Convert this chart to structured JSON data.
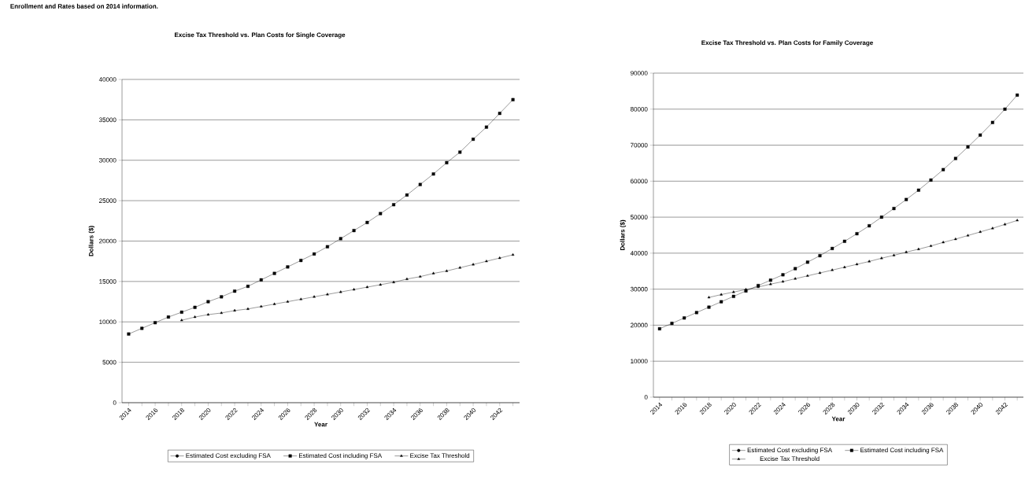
{
  "chart_data": [
    {
      "type": "line",
      "title": "Excise Tax Threshold vs. Plan Costs for Single Coverage",
      "xlabel": "Year",
      "ylabel": "Dollars ($)",
      "annotations": [
        "Enrollment and Rates based on 2014 information."
      ],
      "categories": [
        "2014",
        null,
        "2016",
        null,
        "2018",
        null,
        "2020",
        null,
        "2022",
        null,
        "2024",
        null,
        "2026",
        null,
        "2028",
        null,
        "2030",
        null,
        "2032",
        null,
        "2034",
        null,
        "2036",
        null,
        "2038",
        null,
        "2040",
        null,
        "2042",
        null
      ],
      "ylim": [
        0,
        40000
      ],
      "yticks": [
        0,
        5000,
        10000,
        15000,
        20000,
        25000,
        30000,
        35000,
        40000
      ],
      "grid": "y",
      "legend": "bottom",
      "series": [
        {
          "name": "Estimated Cost excluding FSA",
          "color": "#000000",
          "marker": "circle",
          "values": [
            null,
            null,
            null,
            null,
            null,
            null,
            null,
            null,
            null,
            null,
            null,
            null,
            null,
            null,
            null,
            null,
            null,
            null,
            null,
            null,
            null,
            null,
            null,
            null,
            null,
            null,
            null,
            null,
            null,
            null
          ]
        },
        {
          "name": "Estimated Cost including FSA",
          "color": "#000000",
          "marker": "square",
          "values": [
            8500,
            9200,
            9900,
            10600,
            11200,
            11800,
            12500,
            13100,
            13800,
            14400,
            15200,
            16000,
            16800,
            17600,
            18400,
            19300,
            20300,
            21300,
            22300,
            23400,
            24500,
            25700,
            27000,
            28300,
            29700,
            31000,
            32600,
            34100,
            35800,
            37500
          ]
        },
        {
          "name": "Excise Tax Threshold",
          "color": "#000000",
          "marker": "triangle",
          "values": [
            null,
            null,
            null,
            null,
            10200,
            10600,
            10900,
            11100,
            11400,
            11600,
            11900,
            12200,
            12500,
            12800,
            13100,
            13400,
            13700,
            14000,
            14300,
            14600,
            14900,
            15300,
            15600,
            16000,
            16300,
            16700,
            17100,
            17500,
            17900,
            18300
          ]
        }
      ]
    },
    {
      "type": "line",
      "title": "Excise Tax Threshold vs. Plan Costs for Family Coverage",
      "xlabel": "Year",
      "ylabel": "Dollars ($)",
      "categories": [
        "2014",
        null,
        "2016",
        null,
        "2018",
        null,
        "2020",
        null,
        "2022",
        null,
        "2024",
        null,
        "2026",
        null,
        "2028",
        null,
        "2030",
        null,
        "2032",
        null,
        "2034",
        null,
        "2036",
        null,
        "2038",
        null,
        "2040",
        null,
        "2042",
        null
      ],
      "ylim": [
        0,
        90000
      ],
      "yticks": [
        0,
        10000,
        20000,
        30000,
        40000,
        50000,
        60000,
        70000,
        80000,
        90000
      ],
      "grid": "y",
      "legend": "bottom",
      "series": [
        {
          "name": "Estimated Cost excluding FSA",
          "color": "#000000",
          "marker": "circle",
          "values": [
            null,
            null,
            null,
            null,
            null,
            null,
            null,
            null,
            null,
            null,
            null,
            null,
            null,
            null,
            null,
            null,
            null,
            null,
            null,
            null,
            null,
            null,
            null,
            null,
            null,
            null,
            null,
            null,
            null,
            null
          ]
        },
        {
          "name": "Estimated Cost including FSA",
          "color": "#000000",
          "marker": "square",
          "values": [
            19000,
            20500,
            22000,
            23500,
            25000,
            26500,
            28000,
            29500,
            31000,
            32500,
            34000,
            35700,
            37500,
            39300,
            41300,
            43300,
            45400,
            47600,
            50000,
            52400,
            54900,
            57500,
            60300,
            63200,
            66300,
            69500,
            72800,
            76300,
            80000,
            83900
          ]
        },
        {
          "name": "Excise Tax Threshold",
          "color": "#000000",
          "marker": "triangle",
          "values": [
            null,
            null,
            null,
            null,
            27700,
            28500,
            29200,
            29900,
            30600,
            31400,
            32100,
            32900,
            33700,
            34500,
            35300,
            36100,
            36900,
            37700,
            38600,
            39400,
            40300,
            41100,
            42000,
            43000,
            43900,
            44900,
            45900,
            46900,
            48000,
            49100
          ]
        }
      ]
    }
  ]
}
